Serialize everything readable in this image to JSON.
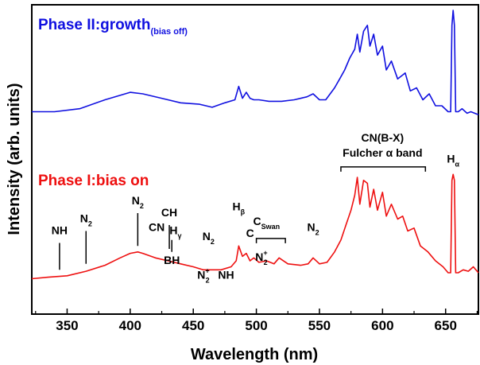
{
  "chart_data": {
    "type": "line",
    "xlabel": "Wavelength (nm)",
    "ylabel": "Intensity (arb. units)",
    "xlim": [
      322,
      676
    ],
    "ylim": [
      0,
      1
    ],
    "xticks": [
      350,
      400,
      450,
      500,
      550,
      600,
      650
    ],
    "yticks": [],
    "grid": false,
    "legend": "none",
    "series": [
      {
        "name": "Phase II:growth(bias off)",
        "color": "#1010e0",
        "x": [
          322,
          340,
          360,
          380,
          400,
          410,
          425,
          440,
          455,
          465,
          475,
          483,
          486,
          489,
          492,
          495,
          498,
          502,
          510,
          520,
          530,
          540,
          545,
          550,
          555,
          562,
          566,
          570,
          574,
          578,
          580,
          582,
          585,
          588,
          590,
          593,
          596,
          600,
          603,
          607,
          612,
          618,
          622,
          627,
          632,
          637,
          642,
          647,
          652,
          654,
          655,
          656,
          657,
          658,
          660,
          663,
          667,
          670,
          676
        ],
        "y": [
          0.66,
          0.66,
          0.67,
          0.7,
          0.725,
          0.72,
          0.705,
          0.69,
          0.685,
          0.675,
          0.69,
          0.7,
          0.745,
          0.705,
          0.725,
          0.705,
          0.7,
          0.7,
          0.695,
          0.695,
          0.7,
          0.71,
          0.72,
          0.7,
          0.7,
          0.74,
          0.77,
          0.8,
          0.84,
          0.87,
          0.92,
          0.86,
          0.93,
          0.95,
          0.88,
          0.92,
          0.85,
          0.88,
          0.8,
          0.83,
          0.77,
          0.79,
          0.73,
          0.74,
          0.7,
          0.72,
          0.68,
          0.68,
          0.66,
          0.66,
          0.95,
          1.0,
          0.95,
          0.66,
          0.66,
          0.67,
          0.655,
          0.66,
          0.65
        ]
      },
      {
        "name": "Phase I:bias on",
        "color": "#ee1010",
        "x": [
          322,
          335,
          350,
          365,
          380,
          392,
          400,
          406,
          410,
          420,
          430,
          440,
          450,
          458,
          465,
          472,
          480,
          484,
          486,
          489,
          492,
          495,
          498,
          502,
          508,
          514,
          518,
          525,
          535,
          541,
          545,
          550,
          556,
          562,
          567,
          571,
          575,
          578,
          580,
          582,
          585,
          588,
          590,
          593,
          596,
          600,
          603,
          607,
          612,
          616,
          620,
          625,
          630,
          636,
          642,
          648,
          652,
          654,
          655,
          656,
          657,
          658,
          660,
          664,
          668,
          672,
          676
        ],
        "y": [
          0.1,
          0.105,
          0.11,
          0.125,
          0.145,
          0.17,
          0.185,
          0.19,
          0.185,
          0.17,
          0.16,
          0.15,
          0.14,
          0.13,
          0.13,
          0.13,
          0.14,
          0.16,
          0.21,
          0.175,
          0.185,
          0.16,
          0.17,
          0.155,
          0.16,
          0.15,
          0.17,
          0.15,
          0.145,
          0.15,
          0.17,
          0.15,
          0.155,
          0.19,
          0.23,
          0.28,
          0.33,
          0.38,
          0.44,
          0.35,
          0.43,
          0.42,
          0.34,
          0.4,
          0.33,
          0.39,
          0.31,
          0.35,
          0.3,
          0.31,
          0.26,
          0.27,
          0.21,
          0.19,
          0.16,
          0.14,
          0.12,
          0.12,
          0.43,
          0.45,
          0.43,
          0.12,
          0.12,
          0.13,
          0.125,
          0.14,
          0.12
        ]
      }
    ],
    "annotations": [
      {
        "text": "NH",
        "x": 344,
        "ylabel": 0.25,
        "line": [
          0.13,
          0.22
        ]
      },
      {
        "text": "N",
        "sub": "2",
        "x": 365,
        "ylabel": 0.29,
        "line": [
          0.15,
          0.26
        ]
      },
      {
        "text": "N",
        "sub": "2",
        "x": 406,
        "ylabel": 0.35,
        "line": [
          0.21,
          0.32
        ]
      },
      {
        "text": "CN",
        "x": 421,
        "ylabel": 0.26
      },
      {
        "text": "CH",
        "x": 431,
        "ylabel": 0.31,
        "line": [
          0.2,
          0.28
        ]
      },
      {
        "text": "H",
        "sub": "γ",
        "x": 436,
        "ylabel": 0.25
      },
      {
        "text": "BH",
        "x": 433,
        "ylabel": 0.15,
        "line": [
          0.19,
          0.23
        ]
      },
      {
        "text": "N",
        "sub": "2",
        "x": 462,
        "ylabel": 0.23
      },
      {
        "text": "N",
        "sup": "+",
        "sub": "2",
        "x": 458,
        "ylabel": 0.1
      },
      {
        "text": "NH",
        "x": 476,
        "ylabel": 0.1
      },
      {
        "text": "H",
        "sub": "β",
        "x": 486,
        "ylabel": 0.33
      },
      {
        "text": "C",
        "x": 495,
        "ylabel": 0.24
      },
      {
        "text": "C",
        "sub": "Swan",
        "x": 508,
        "ylabel": 0.28
      },
      {
        "text": "N",
        "sup": "+",
        "sub": "2",
        "x": 504,
        "ylabel": 0.16
      },
      {
        "text": "N",
        "sub": "2",
        "x": 545,
        "ylabel": 0.26
      },
      {
        "text": "CN(B-X)",
        "x": 600,
        "ylabel": 0.56
      },
      {
        "text": "Fulcher α band",
        "x": 600,
        "ylabel": 0.51
      },
      {
        "text": "H",
        "sub": "α",
        "x": 656,
        "ylabel": 0.49
      }
    ],
    "phase_labels": [
      {
        "text": "Phase II:growth",
        "sub": "(bias off)",
        "color": "#1010e0"
      },
      {
        "text": "Phase I:bias on",
        "color": "#ee1010"
      }
    ]
  }
}
